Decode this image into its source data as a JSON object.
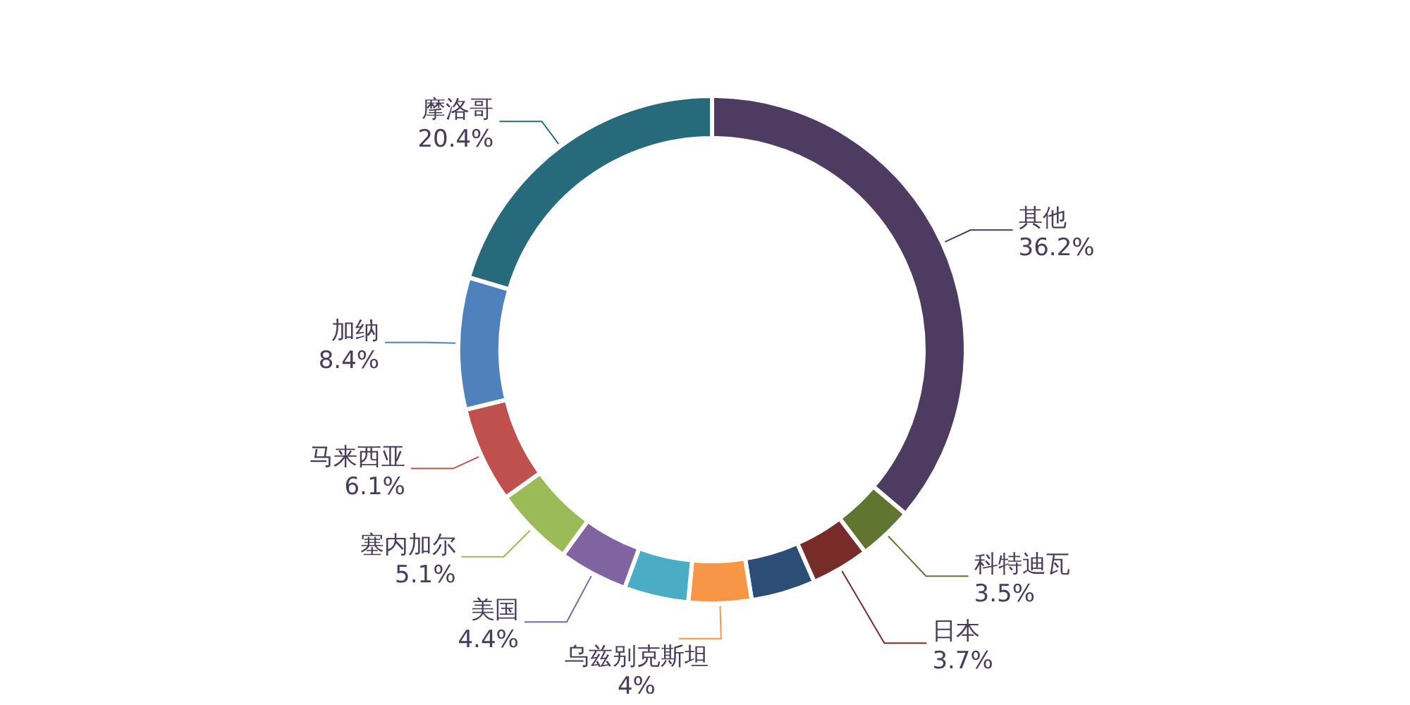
{
  "chart_data": {
    "type": "donut",
    "categories": [
      "其他",
      "科特迪瓦",
      "日本",
      null,
      "乌兹别克斯坦",
      null,
      "美国",
      "塞内加尔",
      "马来西亚",
      "加纳",
      "摩洛哥"
    ],
    "values": [
      36.2,
      3.5,
      3.7,
      4.1,
      4,
      4.1,
      4.4,
      5.1,
      6.1,
      8.4,
      20.4
    ],
    "value_labels": [
      "36.2%",
      "3.5%",
      "3.7%",
      null,
      "4%",
      null,
      "4.4%",
      "5.1%",
      "6.1%",
      "8.4%",
      "20.4%"
    ],
    "colors": [
      "#4e3b62",
      "#5f7530",
      "#772c2a",
      "#2c4d75",
      "#f79646",
      "#4bacc6",
      "#8064a2",
      "#9bbb59",
      "#c0504d",
      "#4f81bd",
      "#276a7c"
    ]
  }
}
